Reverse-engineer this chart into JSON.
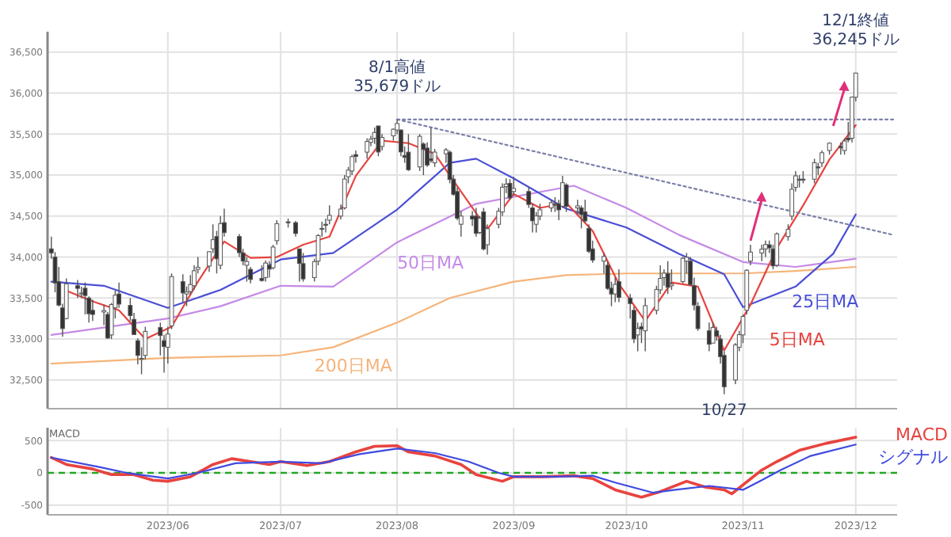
{
  "chart_data": [
    {
      "type": "candlestick",
      "x": [
        "2023-05-01",
        "2023-05-02",
        "2023-05-03",
        "2023-05-04",
        "2023-05-05",
        "2023-05-08",
        "2023-05-09",
        "2023-05-10",
        "2023-05-11",
        "2023-05-12",
        "2023-05-15",
        "2023-05-16",
        "2023-05-17",
        "2023-05-18",
        "2023-05-19",
        "2023-05-22",
        "2023-05-23",
        "2023-05-24",
        "2023-05-25",
        "2023-05-26",
        "2023-05-30",
        "2023-05-31",
        "2023-06-01",
        "2023-06-02",
        "2023-06-05",
        "2023-06-06",
        "2023-06-07",
        "2023-06-08",
        "2023-06-09",
        "2023-06-12",
        "2023-06-13",
        "2023-06-14",
        "2023-06-15",
        "2023-06-16",
        "2023-06-20",
        "2023-06-21",
        "2023-06-22",
        "2023-06-23",
        "2023-06-26",
        "2023-06-27",
        "2023-06-28",
        "2023-06-29",
        "2023-06-30",
        "2023-07-03",
        "2023-07-05",
        "2023-07-06",
        "2023-07-07",
        "2023-07-10",
        "2023-07-11",
        "2023-07-12",
        "2023-07-13",
        "2023-07-14",
        "2023-07-17",
        "2023-07-18",
        "2023-07-19",
        "2023-07-20",
        "2023-07-21",
        "2023-07-24",
        "2023-07-25",
        "2023-07-26",
        "2023-07-27",
        "2023-07-28",
        "2023-07-31",
        "2023-08-01",
        "2023-08-02",
        "2023-08-03",
        "2023-08-04",
        "2023-08-07",
        "2023-08-08",
        "2023-08-09",
        "2023-08-10",
        "2023-08-11",
        "2023-08-14",
        "2023-08-15",
        "2023-08-16",
        "2023-08-17",
        "2023-08-18",
        "2023-08-21",
        "2023-08-22",
        "2023-08-23",
        "2023-08-24",
        "2023-08-25",
        "2023-08-28",
        "2023-08-29",
        "2023-08-30",
        "2023-08-31",
        "2023-09-01",
        "2023-09-05",
        "2023-09-06",
        "2023-09-07",
        "2023-09-08",
        "2023-09-11",
        "2023-09-12",
        "2023-09-13",
        "2023-09-14",
        "2023-09-15",
        "2023-09-18",
        "2023-09-19",
        "2023-09-20",
        "2023-09-21",
        "2023-09-22",
        "2023-09-25",
        "2023-09-26",
        "2023-09-27",
        "2023-09-28",
        "2023-09-29",
        "2023-10-02",
        "2023-10-03",
        "2023-10-04",
        "2023-10-05",
        "2023-10-06",
        "2023-10-09",
        "2023-10-10",
        "2023-10-11",
        "2023-10-12",
        "2023-10-13",
        "2023-10-16",
        "2023-10-17",
        "2023-10-18",
        "2023-10-19",
        "2023-10-20",
        "2023-10-23",
        "2023-10-24",
        "2023-10-25",
        "2023-10-26",
        "2023-10-27",
        "2023-10-30",
        "2023-10-31",
        "2023-11-01",
        "2023-11-02",
        "2023-11-03",
        "2023-11-06",
        "2023-11-07",
        "2023-11-08",
        "2023-11-09",
        "2023-11-10",
        "2023-11-13",
        "2023-11-14",
        "2023-11-15",
        "2023-11-16",
        "2023-11-17",
        "2023-11-20",
        "2023-11-21",
        "2023-11-22",
        "2023-11-24",
        "2023-11-27",
        "2023-11-28",
        "2023-11-29",
        "2023-11-30",
        "2023-12-01"
      ],
      "ohlc": [
        [
          34100,
          34250,
          33980,
          34051
        ],
        [
          34000,
          34060,
          33570,
          33684
        ],
        [
          33700,
          33880,
          33400,
          33414
        ],
        [
          33380,
          33430,
          33030,
          33128
        ],
        [
          33250,
          33740,
          33240,
          33674
        ],
        [
          33650,
          33720,
          33500,
          33618
        ],
        [
          33560,
          33640,
          33500,
          33561
        ],
        [
          33620,
          33690,
          33300,
          33531
        ],
        [
          33500,
          33520,
          33200,
          33309
        ],
        [
          33350,
          33480,
          33220,
          33300
        ],
        [
          33330,
          33420,
          33170,
          33348
        ],
        [
          33300,
          33330,
          33000,
          33012
        ],
        [
          33050,
          33440,
          33000,
          33420
        ],
        [
          33380,
          33590,
          33250,
          33535
        ],
        [
          33550,
          33690,
          33380,
          33426
        ],
        [
          33410,
          33500,
          33220,
          33286
        ],
        [
          33240,
          33320,
          33050,
          33055
        ],
        [
          32980,
          33010,
          32690,
          32800
        ],
        [
          32760,
          32900,
          32570,
          32764
        ],
        [
          32800,
          33150,
          32750,
          33093
        ],
        [
          33140,
          33200,
          32800,
          33042
        ],
        [
          32980,
          33050,
          32590,
          32908
        ],
        [
          32900,
          33150,
          32700,
          33061
        ],
        [
          33160,
          33800,
          33120,
          33762
        ],
        [
          33700,
          33790,
          33450,
          33563
        ],
        [
          33550,
          33640,
          33400,
          33573
        ],
        [
          33580,
          33780,
          33540,
          33665
        ],
        [
          33650,
          33900,
          33600,
          33833
        ],
        [
          33850,
          34000,
          33800,
          33876
        ],
        [
          33890,
          34070,
          33820,
          34066
        ],
        [
          34100,
          34400,
          34050,
          34212
        ],
        [
          34250,
          34320,
          33800,
          33979
        ],
        [
          33900,
          34500,
          33850,
          34408
        ],
        [
          34420,
          34590,
          34250,
          34299
        ],
        [
          34250,
          34280,
          34000,
          34053
        ],
        [
          34050,
          34100,
          33900,
          33951
        ],
        [
          33900,
          34000,
          33700,
          33946
        ],
        [
          33850,
          33880,
          33680,
          33727
        ],
        [
          33740,
          33900,
          33700,
          33714
        ],
        [
          33750,
          33960,
          33700,
          33927
        ],
        [
          33900,
          33950,
          33750,
          33853
        ],
        [
          33870,
          34150,
          33850,
          34122
        ],
        [
          34200,
          34450,
          34150,
          34408
        ],
        [
          34430,
          34470,
          34360,
          34418
        ],
        [
          34420,
          34440,
          34250,
          34288
        ],
        [
          34100,
          34100,
          33700,
          33922
        ],
        [
          33920,
          34050,
          33700,
          33734
        ],
        [
          33750,
          33980,
          33700,
          33945
        ],
        [
          33950,
          34280,
          33900,
          34262
        ],
        [
          34350,
          34430,
          34250,
          34347
        ],
        [
          34400,
          34470,
          34300,
          34395
        ],
        [
          34450,
          34630,
          34400,
          34509
        ],
        [
          34500,
          34640,
          34460,
          34586
        ],
        [
          34600,
          35000,
          34580,
          34952
        ],
        [
          34980,
          35100,
          34900,
          35061
        ],
        [
          35050,
          35250,
          35000,
          35225
        ],
        [
          35250,
          35300,
          35150,
          35228
        ],
        [
          35280,
          35450,
          35200,
          35411
        ],
        [
          35400,
          35480,
          35350,
          35438
        ],
        [
          35450,
          35580,
          35380,
          35520
        ],
        [
          35600,
          35600,
          35230,
          35282
        ],
        [
          35350,
          35500,
          35300,
          35459
        ],
        [
          35480,
          35570,
          35420,
          35560
        ],
        [
          35550,
          35679,
          35500,
          35630
        ],
        [
          35550,
          35560,
          35230,
          35283
        ],
        [
          35240,
          35350,
          35150,
          35216
        ],
        [
          35280,
          35500,
          35050,
          35066
        ],
        [
          35100,
          35500,
          35050,
          35473
        ],
        [
          35380,
          35400,
          35000,
          35314
        ],
        [
          35330,
          35400,
          35100,
          35123
        ],
        [
          35200,
          35580,
          35150,
          35176
        ],
        [
          35150,
          35320,
          35100,
          35281
        ],
        [
          35260,
          35330,
          35150,
          35308
        ],
        [
          35280,
          35300,
          34900,
          34946
        ],
        [
          34950,
          35000,
          34750,
          34766
        ],
        [
          34800,
          34850,
          34450,
          34474
        ],
        [
          34400,
          34560,
          34250,
          34500
        ],
        [
          34500,
          34560,
          34380,
          34464
        ],
        [
          34500,
          34600,
          34250,
          34289
        ],
        [
          34300,
          34500,
          34280,
          34473
        ],
        [
          34550,
          34600,
          34080,
          34099
        ],
        [
          34150,
          34400,
          34030,
          34346
        ],
        [
          34400,
          34600,
          34350,
          34559
        ],
        [
          34550,
          34900,
          34500,
          34852
        ],
        [
          34860,
          34960,
          34780,
          34890
        ],
        [
          34900,
          34950,
          34700,
          34722
        ],
        [
          34800,
          34980,
          34750,
          34838
        ],
        [
          34800,
          34850,
          34600,
          34642
        ],
        [
          34600,
          34650,
          34300,
          34443
        ],
        [
          34400,
          34550,
          34300,
          34501
        ],
        [
          34500,
          34650,
          34450,
          34577
        ],
        [
          34600,
          34700,
          34550,
          34663
        ],
        [
          34650,
          34730,
          34550,
          34646
        ],
        [
          34650,
          34700,
          34450,
          34576
        ],
        [
          34620,
          34990,
          34600,
          34907
        ],
        [
          34880,
          34900,
          34550,
          34618
        ],
        [
          34600,
          34700,
          34520,
          34624
        ],
        [
          34600,
          34630,
          34350,
          34518
        ],
        [
          34550,
          34700,
          34420,
          34441
        ],
        [
          34350,
          34400,
          34050,
          34070
        ],
        [
          34100,
          34200,
          33930,
          33964
        ],
        [
          33950,
          34050,
          33800,
          34007
        ],
        [
          33900,
          33950,
          33600,
          33618
        ],
        [
          33620,
          33700,
          33400,
          33550
        ],
        [
          33550,
          33750,
          33450,
          33667
        ],
        [
          33700,
          33850,
          33450,
          33508
        ],
        [
          33500,
          33550,
          33250,
          33433
        ],
        [
          33350,
          33400,
          32950,
          33002
        ],
        [
          33050,
          33200,
          32850,
          33129
        ],
        [
          33150,
          33200,
          32950,
          33120
        ],
        [
          33100,
          33500,
          32850,
          33407
        ],
        [
          33350,
          33650,
          33300,
          33604
        ],
        [
          33600,
          33900,
          33550,
          33739
        ],
        [
          33750,
          33850,
          33650,
          33804
        ],
        [
          33800,
          33950,
          33550,
          33631
        ],
        [
          33650,
          33850,
          33600,
          33670
        ],
        [
          33700,
          34000,
          33680,
          33985
        ],
        [
          33950,
          34050,
          33800,
          33998
        ],
        [
          33950,
          34000,
          33650,
          33665
        ],
        [
          33650,
          33750,
          33350,
          33415
        ],
        [
          33400,
          33450,
          33100,
          33127
        ],
        [
          33100,
          33200,
          32850,
          32936
        ],
        [
          32950,
          33200,
          32950,
          33141
        ],
        [
          33100,
          33150,
          32980,
          33036
        ],
        [
          33000,
          33050,
          32700,
          32785
        ],
        [
          32800,
          32850,
          32327,
          32418
        ],
        [
          32500,
          32950,
          32450,
          32929
        ],
        [
          32900,
          33100,
          32850,
          33053
        ],
        [
          33050,
          33300,
          32950,
          33275
        ],
        [
          33350,
          33850,
          33300,
          33839
        ],
        [
          33950,
          34150,
          33900,
          34061
        ],
        [
          34050,
          34150,
          33950,
          34096
        ],
        [
          34100,
          34200,
          34000,
          34153
        ],
        [
          34150,
          34200,
          34050,
          34112
        ],
        [
          34100,
          34150,
          33850,
          33892
        ],
        [
          33900,
          34300,
          33880,
          34283
        ],
        [
          34250,
          34400,
          34200,
          34338
        ],
        [
          34500,
          34900,
          34450,
          34828
        ],
        [
          34850,
          35050,
          34800,
          34991
        ],
        [
          34950,
          35000,
          34850,
          34945
        ],
        [
          34950,
          35050,
          34900,
          34947
        ],
        [
          34950,
          35200,
          34900,
          35151
        ],
        [
          35100,
          35150,
          35000,
          35088
        ],
        [
          35150,
          35300,
          35100,
          35273
        ],
        [
          35300,
          35400,
          35250,
          35390
        ],
        [
          35350,
          35400,
          35250,
          35333
        ],
        [
          35300,
          35450,
          35250,
          35416
        ],
        [
          35450,
          35650,
          35400,
          35430
        ],
        [
          35450,
          35960,
          35400,
          35951
        ],
        [
          35950,
          36250,
          35900,
          36245
        ]
      ],
      "series": [
        {
          "name": "200日MA",
          "type": "line",
          "color": "#f5b47a",
          "x": [
            "2023-05-01",
            "2023-06-01",
            "2023-07-01",
            "2023-07-15",
            "2023-08-01",
            "2023-08-15",
            "2023-09-01",
            "2023-09-15",
            "2023-10-01",
            "2023-10-15",
            "2023-11-01",
            "2023-11-15",
            "2023-12-01"
          ],
          "values": [
            32700,
            32770,
            32800,
            32900,
            33200,
            33500,
            33700,
            33780,
            33800,
            33800,
            33800,
            33830,
            33880
          ]
        },
        {
          "name": "50日MA",
          "type": "line",
          "color": "#c58ae6",
          "x": [
            "2023-05-01",
            "2023-06-01",
            "2023-06-15",
            "2023-07-01",
            "2023-07-15",
            "2023-08-01",
            "2023-08-22",
            "2023-09-17",
            "2023-10-01",
            "2023-10-15",
            "2023-11-01",
            "2023-11-15",
            "2023-12-01"
          ],
          "values": [
            33050,
            33250,
            33400,
            33650,
            33640,
            34180,
            34650,
            34870,
            34600,
            34270,
            33940,
            33880,
            33980
          ]
        },
        {
          "name": "25日MA",
          "type": "line",
          "color": "#4a4fd6",
          "x": [
            "2023-05-01",
            "2023-05-15",
            "2023-06-01",
            "2023-06-15",
            "2023-07-01",
            "2023-07-15",
            "2023-08-01",
            "2023-08-15",
            "2023-08-22",
            "2023-09-01",
            "2023-09-15",
            "2023-10-01",
            "2023-10-15",
            "2023-10-27",
            "2023-11-01",
            "2023-11-15",
            "2023-11-25",
            "2023-12-01"
          ],
          "values": [
            33700,
            33650,
            33380,
            33600,
            33970,
            34050,
            34580,
            35150,
            35200,
            34960,
            34590,
            34360,
            34040,
            33790,
            33390,
            33640,
            34040,
            34520
          ]
        },
        {
          "name": "5日MA",
          "type": "line",
          "color": "#e8433f",
          "x": [
            "2023-05-05",
            "2023-05-12",
            "2023-05-19",
            "2023-05-26",
            "2023-06-02",
            "2023-06-09",
            "2023-06-16",
            "2023-06-23",
            "2023-06-30",
            "2023-07-07",
            "2023-07-14",
            "2023-07-21",
            "2023-07-28",
            "2023-08-04",
            "2023-08-11",
            "2023-08-18",
            "2023-08-25",
            "2023-09-01",
            "2023-09-08",
            "2023-09-15",
            "2023-09-22",
            "2023-09-29",
            "2023-10-06",
            "2023-10-13",
            "2023-10-20",
            "2023-10-27",
            "2023-11-03",
            "2023-11-10",
            "2023-11-17",
            "2023-11-24",
            "2023-12-01"
          ],
          "values": [
            33590,
            33460,
            33350,
            33000,
            33150,
            33700,
            34190,
            33990,
            34000,
            34150,
            34250,
            34990,
            35420,
            35390,
            35260,
            34800,
            34340,
            34770,
            34600,
            34660,
            34320,
            33670,
            33220,
            33690,
            33640,
            32860,
            33420,
            34110,
            34630,
            35190,
            35610
          ]
        },
        {
          "type": "line",
          "color": "#7b7fa8",
          "line_style": "dotted",
          "x": [
            "2023-08-01",
            "2023-12-11"
          ],
          "values": [
            35679,
            34270
          ]
        },
        {
          "type": "line",
          "color": "#7b7fa8",
          "line_style": "dotted",
          "x": [
            "2023-08-01",
            "2023-12-11"
          ],
          "values": [
            35679,
            35679
          ]
        }
      ],
      "annotations": [
        {
          "text": "8/1高値\n35,679ドル",
          "x": "2023-08-01",
          "y": 35679
        },
        {
          "text": "12/1終値\n36,245ドル",
          "x": "2023-12-01",
          "y": 36245
        },
        {
          "text": "10/27",
          "x": "2023-10-27",
          "y": 32327
        }
      ],
      "xlim": [
        "2023-04-30",
        "2023-12-12"
      ],
      "xticks": [
        {
          "value": "2023-06-01",
          "label": null
        },
        {
          "value": "2023-07-01",
          "label": null
        },
        {
          "value": "2023-08-01",
          "label": null
        },
        {
          "value": "2023-09-01",
          "label": null
        },
        {
          "value": "2023-10-01",
          "label": null
        },
        {
          "value": "2023-11-01",
          "label": null
        },
        {
          "value": "2023-12-01",
          "label": null
        }
      ],
      "ylim": [
        32150,
        36750
      ],
      "yticks": [
        {
          "value": 32500,
          "label": "32,500"
        },
        {
          "value": 33000,
          "label": "33,000"
        },
        {
          "value": 33500,
          "label": "33,500"
        },
        {
          "value": 34000,
          "label": "34,000"
        },
        {
          "value": 34500,
          "label": "34,500"
        },
        {
          "value": 35000,
          "label": "35,000"
        },
        {
          "value": 35500,
          "label": "35,500"
        },
        {
          "value": 36000,
          "label": "36,000"
        },
        {
          "value": 36500,
          "label": "36,500"
        }
      ],
      "grid": true,
      "tick_labels": "y"
    },
    {
      "type": "line",
      "ylabel": "MACD",
      "series": [
        {
          "name": "MACD",
          "color": "#e8433f",
          "x": [
            "2023-05-01",
            "2023-05-05",
            "2023-05-12",
            "2023-05-17",
            "2023-05-23",
            "2023-05-28",
            "2023-06-01",
            "2023-06-07",
            "2023-06-13",
            "2023-06-18",
            "2023-06-23",
            "2023-06-28",
            "2023-07-01",
            "2023-07-08",
            "2023-07-14",
            "2023-07-21",
            "2023-07-26",
            "2023-08-01",
            "2023-08-04",
            "2023-08-11",
            "2023-08-18",
            "2023-08-22",
            "2023-08-29",
            "2023-09-01",
            "2023-09-09",
            "2023-09-17",
            "2023-09-22",
            "2023-09-28",
            "2023-10-05",
            "2023-10-10",
            "2023-10-17",
            "2023-10-22",
            "2023-10-27",
            "2023-10-29",
            "2023-11-06",
            "2023-11-10",
            "2023-11-16",
            "2023-11-23",
            "2023-12-01"
          ],
          "values": [
            237,
            130,
            60,
            -26,
            -26,
            -114,
            -130,
            -60,
            130,
            220,
            175,
            130,
            175,
            115,
            175,
            325,
            412,
            420,
            325,
            263,
            130,
            -26,
            -130,
            -60,
            -60,
            -44,
            -88,
            -263,
            -377,
            -290,
            -130,
            -220,
            -263,
            -325,
            44,
            175,
            350,
            456,
            553
          ]
        },
        {
          "name": "シグナル",
          "color": "#3f4ae0",
          "x": [
            "2023-05-01",
            "2023-05-14",
            "2023-05-21",
            "2023-06-01",
            "2023-06-09",
            "2023-06-19",
            "2023-07-01",
            "2023-07-12",
            "2023-07-22",
            "2023-08-01",
            "2023-08-11",
            "2023-08-20",
            "2023-08-28",
            "2023-09-01",
            "2023-09-12",
            "2023-09-22",
            "2023-09-28",
            "2023-10-08",
            "2023-10-14",
            "2023-10-23",
            "2023-11-01",
            "2023-11-06",
            "2023-11-11",
            "2023-11-19",
            "2023-12-01"
          ],
          "values": [
            237,
            88,
            0,
            -88,
            0,
            150,
            175,
            150,
            290,
            377,
            307,
            175,
            0,
            -60,
            -60,
            -44,
            -150,
            -307,
            -263,
            -202,
            -263,
            -114,
            44,
            263,
            439
          ]
        }
      ],
      "ref_lines": [
        {
          "axis": "y",
          "value": 0,
          "color": "#22a822",
          "line_style": "dashed"
        }
      ],
      "xlim": [
        "2023-04-30",
        "2023-12-12"
      ],
      "xticks": [
        {
          "value": "2023-06-01",
          "label": "2023/06"
        },
        {
          "value": "2023-07-01",
          "label": "2023/07"
        },
        {
          "value": "2023-08-01",
          "label": "2023/08"
        },
        {
          "value": "2023-09-01",
          "label": "2023/09"
        },
        {
          "value": "2023-10-01",
          "label": "2023/10"
        },
        {
          "value": "2023-11-01",
          "label": "2023/11"
        },
        {
          "value": "2023-12-01",
          "label": "2023/12"
        }
      ],
      "ylim": [
        -650,
        700
      ],
      "yticks": [
        -500,
        0,
        500
      ],
      "grid": true
    }
  ]
}
